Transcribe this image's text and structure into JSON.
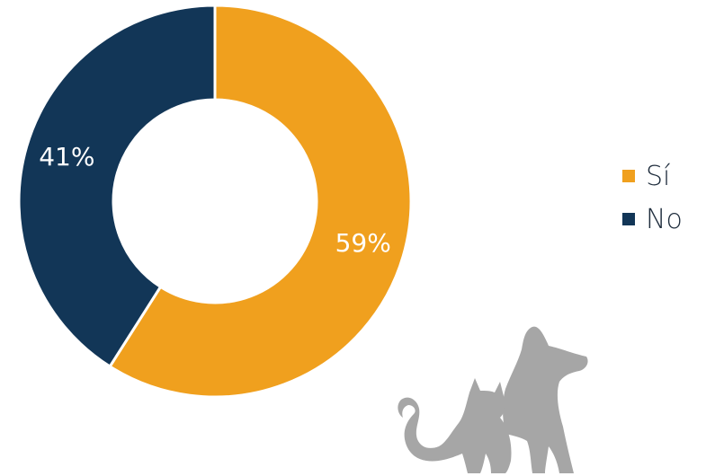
{
  "chart_data": {
    "type": "pie",
    "categories": [
      "Sí",
      "No"
    ],
    "values": [
      59,
      41
    ],
    "labels": [
      "59%",
      "41%"
    ],
    "colors": [
      "#F0A01E",
      "#123657"
    ],
    "donut": true,
    "legend_position": "right",
    "title": ""
  },
  "legend": {
    "items": [
      {
        "label": "Sí",
        "color": "#F0A01E"
      },
      {
        "label": "No",
        "color": "#123657"
      }
    ]
  },
  "decoration": {
    "icon": "dog-and-cat-icon",
    "color": "#A6A6A6"
  }
}
